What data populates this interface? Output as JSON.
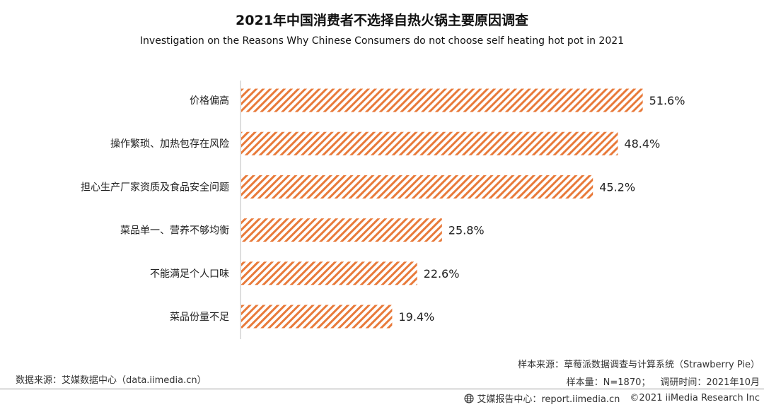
{
  "chart_data": {
    "type": "bar",
    "orientation": "horizontal",
    "title": "2021年中国消费者不选择自热火锅主要原因调查",
    "subtitle": "Investigation on the Reasons Why Chinese Consumers do not choose self heating hot pot in 2021",
    "categories": [
      "价格偏高",
      "操作繁琐、加热包存在风险",
      "担心生产厂家资质及食品安全问题",
      "菜品单一、营养不够均衡",
      "不能满足个人口味",
      "菜品份量不足"
    ],
    "values": [
      51.6,
      48.4,
      45.2,
      25.8,
      22.6,
      19.4
    ],
    "value_labels": [
      "51.6%",
      "48.4%",
      "45.2%",
      "25.8%",
      "22.6%",
      "19.4%"
    ],
    "unit": "%",
    "xlim": [
      0,
      55
    ],
    "grid": false,
    "bar_color": "#E87A3A",
    "bar_pattern": "diagonal-hatch"
  },
  "footer": {
    "source": "数据来源：艾媒数据中心（data.iimedia.cn）",
    "sample_source": "样本来源：草莓派数据调查与计算系统（Strawberry Pie）",
    "sample_size": "样本量：N=1870；",
    "survey_time": "调研时间：2021年10月"
  },
  "brand": {
    "icon": "globe-icon",
    "report_center": "艾媒报告中心：report.iimedia.cn",
    "copyright": "©2021  iiMedia Research  Inc"
  }
}
